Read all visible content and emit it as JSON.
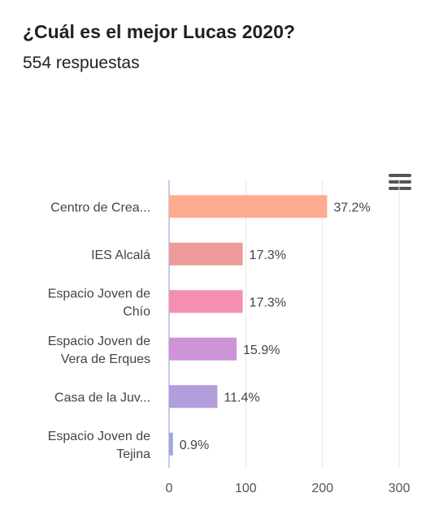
{
  "title": "¿Cuál es el mejor Lucas 2020?",
  "subtitle": "554 respuestas",
  "menu_icon": "hamburger-menu-icon",
  "chart_data": {
    "type": "bar",
    "orientation": "horizontal",
    "categories": [
      [
        "Centro de Crea..."
      ],
      [
        "IES Alcalá"
      ],
      [
        "Espacio Joven de",
        "Chío"
      ],
      [
        "Espacio Joven de",
        "Vera de Erques"
      ],
      [
        "Casa de la Juv..."
      ],
      [
        "Espacio Joven de",
        "Tejina"
      ]
    ],
    "values": [
      206,
      96,
      96,
      88,
      63,
      5
    ],
    "data_labels": [
      "37.2%",
      "17.3%",
      "17.3%",
      "15.9%",
      "11.4%",
      "0.9%"
    ],
    "colors": [
      "#ffab91",
      "#ef9a9a",
      "#f48fb1",
      "#ce93d8",
      "#b39ddb",
      "#9fa8da"
    ],
    "xlim": [
      0,
      300
    ],
    "xticks": [
      0,
      100,
      200,
      300
    ],
    "grid": true
  }
}
